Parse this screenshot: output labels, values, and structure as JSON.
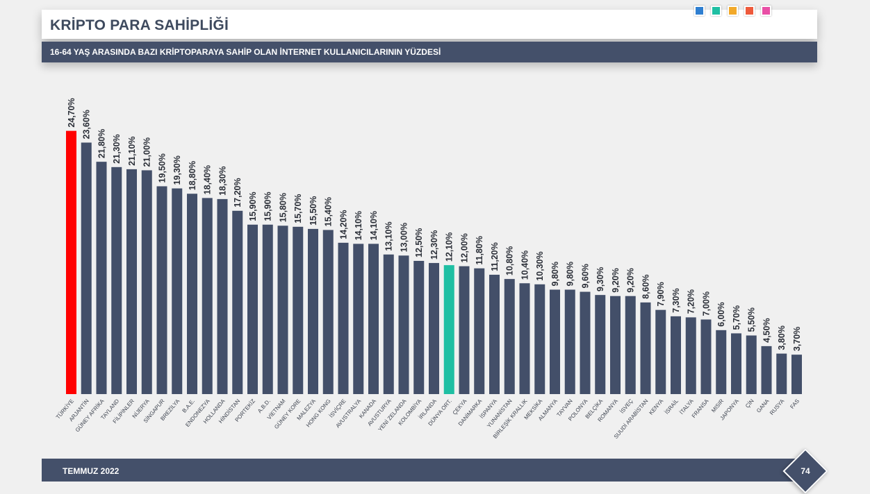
{
  "header": {
    "title": "KRİPTO PARA SAHİPLİĞİ",
    "subtitle": "16-64 YAŞ ARASINDA BAZI KRİPTOPARAYA SAHİP OLAN İNTERNET KULLANICILARININ YÜZDESİ",
    "palette": [
      "#2f7fd1",
      "#1fbfa3",
      "#f2a92a",
      "#ee5a3c",
      "#e94fa6"
    ]
  },
  "footer": {
    "date": "TEMMUZ 2022",
    "page": "74"
  },
  "colors": {
    "default_bar": "#434f69",
    "highlight_turkey": "#ff0000",
    "highlight_world": "#1fbfa3"
  },
  "chart_data": {
    "type": "bar",
    "title": "",
    "xlabel": "",
    "ylabel": "",
    "ylim": [
      0,
      26
    ],
    "grid": false,
    "categories": [
      "TÜRKİYE",
      "ARJANTİN",
      "GÜNEY AFRİKA",
      "TAYLAND",
      "FİLİPİNLER",
      "NİJERYA",
      "SİNGAPUR",
      "BREZİLYA",
      "B.A.E.",
      "ENDONEZYA",
      "HOLLANDA",
      "HİNDİSTAN",
      "PORTEKİZ",
      "A.B.D.",
      "VİETNAM",
      "GÜNEY KORE",
      "MALEZYA",
      "HONG KONG",
      "İSVİÇRE",
      "AVUSTRALYA",
      "KANADA",
      "AVUSTURYA",
      "YENİ ZELANDA",
      "KOLOMBİYA",
      "İRLANDA",
      "DÜNYA ORT.",
      "ÇEKYA",
      "DANİMARKA",
      "İSPANYA",
      "YUNANİSTAN",
      "BİRLEŞİK KRALLIK",
      "MEKSİKA",
      "ALMANYA",
      "TAYVAN",
      "POLONYA",
      "BELÇİKA",
      "ROMANYA",
      "İSVEÇ",
      "SUUDİ ARABİSTAN",
      "KENYA",
      "İSRAİL",
      "İTALYA",
      "FRANSA",
      "MISIR",
      "JAPONYA",
      "ÇİN",
      "GANA",
      "RUSYA",
      "FAS"
    ],
    "values": [
      24.7,
      23.6,
      21.8,
      21.3,
      21.1,
      21.0,
      19.5,
      19.3,
      18.8,
      18.4,
      18.3,
      17.2,
      15.9,
      15.9,
      15.8,
      15.7,
      15.5,
      15.4,
      14.2,
      14.1,
      14.1,
      13.1,
      13.0,
      12.5,
      12.3,
      12.1,
      12.0,
      11.8,
      11.2,
      10.8,
      10.4,
      10.3,
      9.8,
      9.8,
      9.6,
      9.3,
      9.2,
      9.2,
      8.6,
      7.9,
      7.3,
      7.2,
      7.0,
      6.0,
      5.7,
      5.5,
      4.5,
      3.8,
      3.7
    ],
    "value_labels": [
      "24,70%",
      "23,60%",
      "21,80%",
      "21,30%",
      "21,10%",
      "21,00%",
      "19,50%",
      "19,30%",
      "18,80%",
      "18,40%",
      "18,30%",
      "17,20%",
      "15,90%",
      "15,90%",
      "15,80%",
      "15,70%",
      "15,50%",
      "15,40%",
      "14,20%",
      "14,10%",
      "14,10%",
      "13,10%",
      "13,00%",
      "12,50%",
      "12,30%",
      "12,10%",
      "12,00%",
      "11,80%",
      "11,20%",
      "10,80%",
      "10,40%",
      "10,30%",
      "9,80%",
      "9,80%",
      "9,60%",
      "9,30%",
      "9,20%",
      "9,20%",
      "8,60%",
      "7,90%",
      "7,30%",
      "7,20%",
      "7,00%",
      "6,00%",
      "5,70%",
      "5,50%",
      "4,50%",
      "3,80%",
      "3,70%"
    ],
    "highlight": {
      "TÜRKİYE": "highlight_turkey",
      "DÜNYA ORT.": "highlight_world"
    }
  }
}
